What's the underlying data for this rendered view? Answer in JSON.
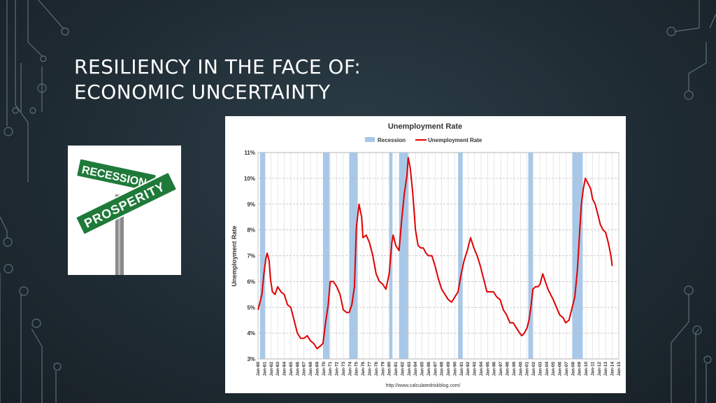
{
  "slide": {
    "title_line1": "RESILIENCY IN THE FACE OF:",
    "title_line2": "ECONOMIC UNCERTAINTY"
  },
  "sign_image": {
    "sign_top": "RECESSION",
    "sign_bottom": "PROSPERITY",
    "sign_color": "#1f7a3a"
  },
  "chart_data": {
    "type": "line",
    "title": "Unemployment Rate",
    "ylabel": "Unemployment Rate",
    "xlabel": "",
    "source": "http://www.calculatedriskblog.com/",
    "legend": [
      {
        "name": "Recession",
        "color": "#a9c8e8"
      },
      {
        "name": "Unemployment Rate",
        "color": "#e00000"
      }
    ],
    "legend_position": "top",
    "ylim": [
      3,
      11
    ],
    "yticks": [
      "3%",
      "4%",
      "5%",
      "6%",
      "7%",
      "8%",
      "9%",
      "10%",
      "11%"
    ],
    "xlim": [
      1960,
      2015
    ],
    "xticks": [
      "Jan-60",
      "Jan-61",
      "Jan-62",
      "Jan-63",
      "Jan-64",
      "Jan-65",
      "Jan-66",
      "Jan-67",
      "Jan-68",
      "Jan-69",
      "Jan-70",
      "Jan-71",
      "Jan-72",
      "Jan-73",
      "Jan-74",
      "Jan-75",
      "Jan-76",
      "Jan-77",
      "Jan-78",
      "Jan-79",
      "Jan-80",
      "Jan-81",
      "Jan-82",
      "Jan-83",
      "Jan-84",
      "Jan-85",
      "Jan-86",
      "Jan-87",
      "Jan-88",
      "Jan-89",
      "Jan-90",
      "Jan-91",
      "Jan-92",
      "Jan-93",
      "Jan-94",
      "Jan-95",
      "Jan-96",
      "Jan-97",
      "Jan-98",
      "Jan-99",
      "Jan-00",
      "Jan-01",
      "Jan-02",
      "Jan-03",
      "Jan-04",
      "Jan-05",
      "Jan-06",
      "Jan-07",
      "Jan-08",
      "Jan-09",
      "Jan-10",
      "Jan-11",
      "Jan-12",
      "Jan-13",
      "Jan-14",
      "Jan-15"
    ],
    "grid": true,
    "recessions": [
      [
        1960.3,
        1961.1
      ],
      [
        1969.9,
        1970.9
      ],
      [
        1973.9,
        1975.2
      ],
      [
        1980.0,
        1980.5
      ],
      [
        1981.5,
        1982.9
      ],
      [
        1990.5,
        1991.2
      ],
      [
        2001.2,
        2001.9
      ],
      [
        2007.9,
        2009.5
      ]
    ],
    "series": [
      {
        "name": "Unemployment Rate",
        "color": "#e00000",
        "points": [
          [
            1960.0,
            4.9
          ],
          [
            1960.3,
            5.2
          ],
          [
            1960.6,
            5.5
          ],
          [
            1960.9,
            6.3
          ],
          [
            1961.2,
            6.9
          ],
          [
            1961.4,
            7.1
          ],
          [
            1961.7,
            6.8
          ],
          [
            1961.9,
            6.1
          ],
          [
            1962.2,
            5.6
          ],
          [
            1962.6,
            5.5
          ],
          [
            1963.0,
            5.8
          ],
          [
            1963.5,
            5.6
          ],
          [
            1964.0,
            5.5
          ],
          [
            1964.5,
            5.1
          ],
          [
            1965.0,
            5.0
          ],
          [
            1965.5,
            4.5
          ],
          [
            1966.0,
            4.0
          ],
          [
            1966.5,
            3.8
          ],
          [
            1967.0,
            3.8
          ],
          [
            1967.5,
            3.9
          ],
          [
            1968.0,
            3.7
          ],
          [
            1968.5,
            3.6
          ],
          [
            1969.0,
            3.4
          ],
          [
            1969.5,
            3.5
          ],
          [
            1969.9,
            3.6
          ],
          [
            1970.3,
            4.4
          ],
          [
            1970.7,
            5.1
          ],
          [
            1971.0,
            6.0
          ],
          [
            1971.5,
            6.0
          ],
          [
            1972.0,
            5.8
          ],
          [
            1972.5,
            5.5
          ],
          [
            1973.0,
            4.9
          ],
          [
            1973.5,
            4.8
          ],
          [
            1973.9,
            4.8
          ],
          [
            1974.3,
            5.1
          ],
          [
            1974.7,
            5.8
          ],
          [
            1975.0,
            8.1
          ],
          [
            1975.4,
            9.0
          ],
          [
            1975.8,
            8.5
          ],
          [
            1976.0,
            7.7
          ],
          [
            1976.5,
            7.8
          ],
          [
            1977.0,
            7.5
          ],
          [
            1977.5,
            7.0
          ],
          [
            1978.0,
            6.3
          ],
          [
            1978.5,
            6.0
          ],
          [
            1979.0,
            5.9
          ],
          [
            1979.5,
            5.7
          ],
          [
            1980.0,
            6.3
          ],
          [
            1980.4,
            7.5
          ],
          [
            1980.6,
            7.8
          ],
          [
            1981.0,
            7.4
          ],
          [
            1981.5,
            7.2
          ],
          [
            1981.9,
            8.4
          ],
          [
            1982.3,
            9.4
          ],
          [
            1982.7,
            10.1
          ],
          [
            1982.9,
            10.8
          ],
          [
            1983.2,
            10.4
          ],
          [
            1983.6,
            9.4
          ],
          [
            1984.0,
            8.0
          ],
          [
            1984.4,
            7.4
          ],
          [
            1984.8,
            7.3
          ],
          [
            1985.2,
            7.3
          ],
          [
            1985.6,
            7.1
          ],
          [
            1986.0,
            7.0
          ],
          [
            1986.5,
            7.0
          ],
          [
            1987.0,
            6.6
          ],
          [
            1987.5,
            6.1
          ],
          [
            1988.0,
            5.7
          ],
          [
            1988.5,
            5.5
          ],
          [
            1989.0,
            5.3
          ],
          [
            1989.5,
            5.2
          ],
          [
            1990.0,
            5.4
          ],
          [
            1990.5,
            5.6
          ],
          [
            1990.9,
            6.2
          ],
          [
            1991.4,
            6.8
          ],
          [
            1991.9,
            7.2
          ],
          [
            1992.4,
            7.7
          ],
          [
            1992.9,
            7.3
          ],
          [
            1993.4,
            7.0
          ],
          [
            1993.9,
            6.6
          ],
          [
            1994.4,
            6.1
          ],
          [
            1994.9,
            5.6
          ],
          [
            1995.4,
            5.6
          ],
          [
            1995.9,
            5.6
          ],
          [
            1996.4,
            5.4
          ],
          [
            1996.9,
            5.3
          ],
          [
            1997.4,
            4.9
          ],
          [
            1997.9,
            4.7
          ],
          [
            1998.4,
            4.4
          ],
          [
            1998.9,
            4.4
          ],
          [
            1999.4,
            4.2
          ],
          [
            1999.9,
            4.0
          ],
          [
            2000.2,
            3.9
          ],
          [
            2000.6,
            4.0
          ],
          [
            2001.0,
            4.2
          ],
          [
            2001.3,
            4.5
          ],
          [
            2001.6,
            5.0
          ],
          [
            2001.9,
            5.7
          ],
          [
            2002.3,
            5.8
          ],
          [
            2002.7,
            5.8
          ],
          [
            2003.0,
            5.9
          ],
          [
            2003.4,
            6.3
          ],
          [
            2003.8,
            6.0
          ],
          [
            2004.2,
            5.7
          ],
          [
            2004.6,
            5.5
          ],
          [
            2005.0,
            5.3
          ],
          [
            2005.5,
            5.0
          ],
          [
            2006.0,
            4.7
          ],
          [
            2006.5,
            4.6
          ],
          [
            2006.9,
            4.4
          ],
          [
            2007.4,
            4.5
          ],
          [
            2007.9,
            5.0
          ],
          [
            2008.3,
            5.4
          ],
          [
            2008.7,
            6.5
          ],
          [
            2009.0,
            7.8
          ],
          [
            2009.3,
            9.0
          ],
          [
            2009.6,
            9.6
          ],
          [
            2009.9,
            10.0
          ],
          [
            2010.3,
            9.8
          ],
          [
            2010.7,
            9.6
          ],
          [
            2011.0,
            9.2
          ],
          [
            2011.4,
            9.0
          ],
          [
            2011.8,
            8.6
          ],
          [
            2012.2,
            8.2
          ],
          [
            2012.6,
            8.0
          ],
          [
            2013.0,
            7.9
          ],
          [
            2013.4,
            7.5
          ],
          [
            2013.8,
            7.0
          ],
          [
            2014.0,
            6.6
          ]
        ]
      }
    ]
  }
}
